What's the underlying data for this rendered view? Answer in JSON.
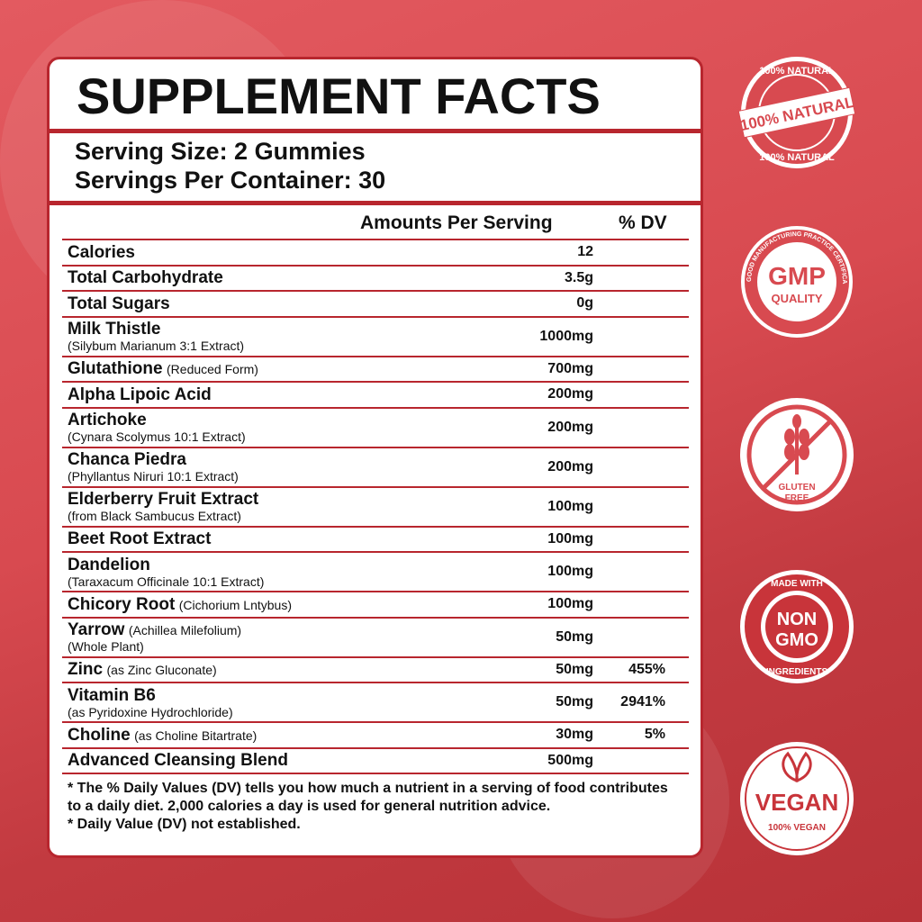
{
  "title": "SUPPLEMENT FACTS",
  "serving_size": "Serving Size: 2 Gummies",
  "servings_per_container": "Servings Per Container: 30",
  "headers": {
    "amount": "Amounts Per Serving",
    "dv": "% DV"
  },
  "rows": [
    {
      "name": "Calories",
      "sub": "",
      "amount": "12",
      "dv": ""
    },
    {
      "name": "Total Carbohydrate",
      "sub": "",
      "amount": "3.5g",
      "dv": ""
    },
    {
      "name": "Total Sugars",
      "sub": "",
      "amount": "0g",
      "dv": ""
    },
    {
      "name": "Milk Thistle",
      "sub2": "(Silybum Marianum 3:1 Extract)",
      "amount": "1000mg",
      "dv": ""
    },
    {
      "name": "Glutathione",
      "sub": "(Reduced Form)",
      "amount": "700mg",
      "dv": ""
    },
    {
      "name": "Alpha Lipoic Acid",
      "sub": "",
      "amount": "200mg",
      "dv": ""
    },
    {
      "name": "Artichoke",
      "sub2": "(Cynara Scolymus 10:1 Extract)",
      "amount": "200mg",
      "dv": ""
    },
    {
      "name": "Chanca Piedra",
      "sub2": "(Phyllantus Niruri 10:1 Extract)",
      "amount": "200mg",
      "dv": ""
    },
    {
      "name": "Elderberry Fruit Extract",
      "sub2": "(from Black Sambucus Extract)",
      "amount": "100mg",
      "dv": ""
    },
    {
      "name": "Beet Root Extract",
      "sub": "",
      "amount": "100mg",
      "dv": ""
    },
    {
      "name": "Dandelion",
      "sub2": "(Taraxacum Officinale 10:1 Extract)",
      "amount": "100mg",
      "dv": ""
    },
    {
      "name": "Chicory Root",
      "sub": "(Cichorium Lntybus)",
      "amount": "100mg",
      "dv": ""
    },
    {
      "name": "Yarrow",
      "sub": "(Achillea Milefolium)",
      "sub2": "(Whole Plant)",
      "amount": "50mg",
      "dv": ""
    },
    {
      "name": "Zinc",
      "sub": "(as Zinc Gluconate)",
      "amount": "50mg",
      "dv": "455%"
    },
    {
      "name": "Vitamin B6",
      "sub2": "(as Pyridoxine Hydrochloride)",
      "amount": "50mg",
      "dv": "2941%"
    },
    {
      "name": "Choline",
      "sub": "(as Choline Bitartrate)",
      "amount": "30mg",
      "dv": "5%"
    },
    {
      "name": "Advanced Cleansing Blend",
      "sub": "",
      "amount": "500mg",
      "dv": ""
    }
  ],
  "footnotes": [
    "* The % Daily Values (DV) tells you how much a nutrient in a serving of food contributes to a daily diet. 2,000 calories a day is used for general nutrition advice.",
    "* Daily Value (DV) not established."
  ],
  "badges": {
    "natural": {
      "ring": "100% NATURAL",
      "banner": "100% NATURAL",
      "bottom": "100% NATURAL"
    },
    "gmp": {
      "main": "GMP",
      "sub": "QUALITY",
      "ring": "GOOD MANUFACTURING PRACTICE CERTIFICATION"
    },
    "gluten": {
      "label1": "GLUTEN",
      "label2": "FREE"
    },
    "nongmo": {
      "top": "MADE WITH",
      "main1": "NON",
      "main2": "GMO",
      "bottom": "INGREDIENTS"
    },
    "vegan": {
      "main": "VEGAN",
      "sub": "100% VEGAN"
    }
  },
  "colors": {
    "accent": "#b8262e",
    "background": "#d84a50"
  }
}
